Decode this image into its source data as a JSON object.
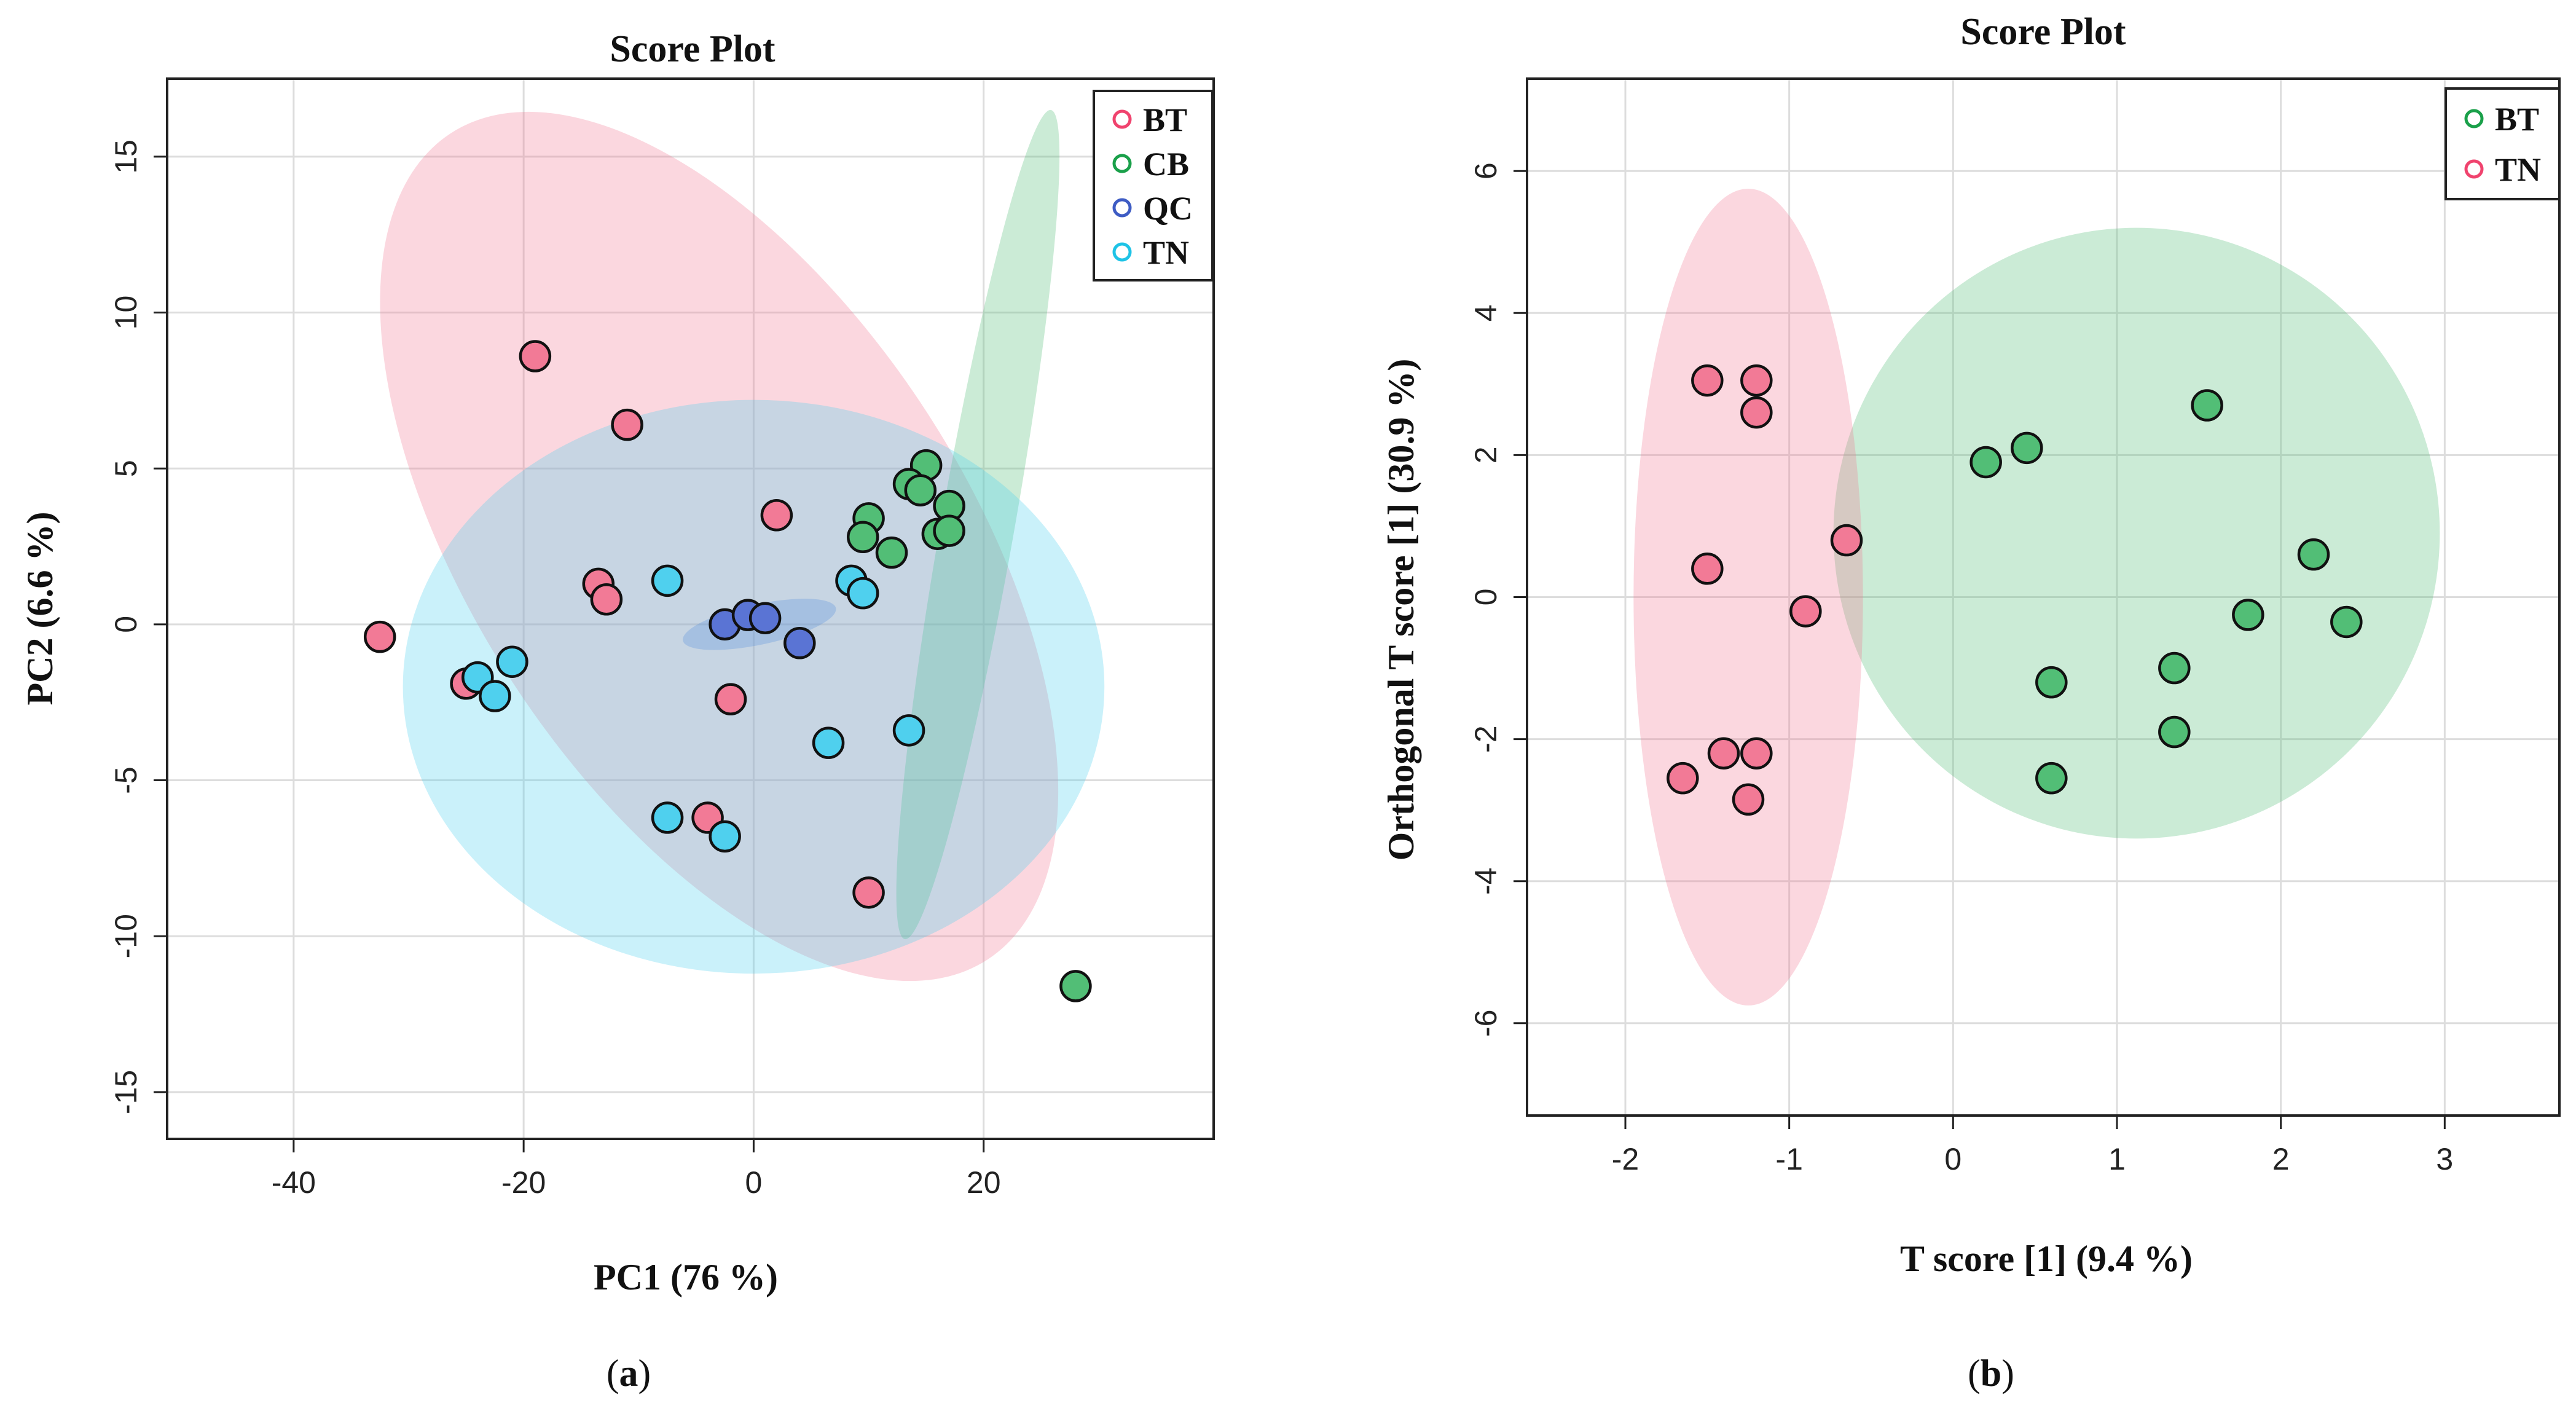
{
  "chart_data": [
    {
      "panel": "(a)",
      "panel_prefix": "(",
      "panel_letter": "a",
      "panel_suffix": ")",
      "type": "scatter",
      "title": "Score Plot",
      "xlabel": "PC1 (76 %)",
      "ylabel": "PC2 (6.6 %)",
      "xlim": [
        -51,
        40
      ],
      "ylim": [
        -16.5,
        17.5
      ],
      "xticks": [
        -40,
        -20,
        0,
        20
      ],
      "yticks": [
        -15,
        -10,
        -5,
        0,
        5,
        10,
        15
      ],
      "grid": true,
      "legend_position": "top-right",
      "series": [
        {
          "name": "BT",
          "color": "#f0436e",
          "fill": "#f27a96",
          "ellipse": {
            "cx": -3,
            "cy": 2.5,
            "rx": 21.5,
            "ry": 15.8,
            "angle": -33
          },
          "points": [
            [
              -19,
              8.6
            ],
            [
              -11,
              6.4
            ],
            [
              2,
              3.5
            ],
            [
              -13.5,
              1.3
            ],
            [
              -12.8,
              0.8
            ],
            [
              -32.5,
              -0.4
            ],
            [
              -25,
              -1.9
            ],
            [
              -2,
              -2.4
            ],
            [
              -4,
              -6.2
            ],
            [
              10,
              -8.6
            ]
          ]
        },
        {
          "name": "CB",
          "color": "#1aa04a",
          "fill": "#52be76",
          "ellipse": {
            "cx": 19.5,
            "cy": 3.2,
            "rx": 3.2,
            "ry": 13.5,
            "angle": 10
          },
          "points": [
            [
              15,
              5.1
            ],
            [
              13.5,
              4.5
            ],
            [
              14.5,
              4.3
            ],
            [
              17,
              3.8
            ],
            [
              10,
              3.4
            ],
            [
              9.5,
              2.8
            ],
            [
              16,
              2.9
            ],
            [
              17,
              3.0
            ],
            [
              12,
              2.3
            ],
            [
              28,
              -11.6
            ]
          ]
        },
        {
          "name": "QC",
          "color": "#3e5cc4",
          "fill": "#5a74d4",
          "ellipse": {
            "cx": 0.5,
            "cy": 0,
            "rx": 6.8,
            "ry": 0.65,
            "angle": -12
          },
          "points": [
            [
              -2.5,
              0
            ],
            [
              -0.5,
              0.3
            ],
            [
              1,
              0.2
            ],
            [
              4,
              -0.6
            ]
          ]
        },
        {
          "name": "TN",
          "color": "#1ec3e6",
          "fill": "#4fd0ee",
          "ellipse": {
            "cx": 0,
            "cy": -2,
            "rx": 30.5,
            "ry": 9.2,
            "angle": 0
          },
          "points": [
            [
              -7.5,
              1.4
            ],
            [
              8.5,
              1.4
            ],
            [
              9.5,
              1.0
            ],
            [
              -21,
              -1.2
            ],
            [
              -24,
              -1.7
            ],
            [
              -22.5,
              -2.3
            ],
            [
              6.5,
              -3.8
            ],
            [
              13.5,
              -3.4
            ],
            [
              -7.5,
              -6.2
            ],
            [
              -2.5,
              -6.8
            ]
          ]
        }
      ]
    },
    {
      "panel": "(b)",
      "panel_prefix": "(",
      "panel_letter": "b",
      "panel_suffix": ")",
      "type": "scatter",
      "title": "Score Plot",
      "xlabel": "T score [1] (9.4 %)",
      "ylabel": "Orthogonal T score [1] (30.9 %)",
      "xlim": [
        -2.6,
        3.7
      ],
      "ylim": [
        -7.3,
        7.3
      ],
      "xticks": [
        -2,
        -1,
        0,
        1,
        2,
        3
      ],
      "yticks": [
        -6,
        -4,
        -2,
        0,
        2,
        4,
        6
      ],
      "grid": true,
      "legend_position": "top-right",
      "series": [
        {
          "name": "BT",
          "color": "#1aa04a",
          "fill": "#52be76",
          "ellipse": {
            "cx": 1.12,
            "cy": 0.9,
            "rx": 1.85,
            "ry": 4.3,
            "angle": 0
          },
          "points": [
            [
              0.2,
              1.9
            ],
            [
              0.45,
              2.1
            ],
            [
              1.55,
              2.7
            ],
            [
              2.2,
              0.6
            ],
            [
              1.8,
              -0.25
            ],
            [
              2.4,
              -0.35
            ],
            [
              0.6,
              -1.2
            ],
            [
              1.35,
              -1.0
            ],
            [
              1.35,
              -1.9
            ],
            [
              0.6,
              -2.55
            ]
          ]
        },
        {
          "name": "TN",
          "color": "#f0436e",
          "fill": "#f27a96",
          "ellipse": {
            "cx": -1.25,
            "cy": 0,
            "rx": 0.7,
            "ry": 5.75,
            "angle": 0
          },
          "points": [
            [
              -1.5,
              3.05
            ],
            [
              -1.2,
              3.05
            ],
            [
              -1.2,
              2.6
            ],
            [
              -0.65,
              0.8
            ],
            [
              -1.5,
              0.4
            ],
            [
              -0.9,
              -0.2
            ],
            [
              -1.65,
              -2.55
            ],
            [
              -1.4,
              -2.2
            ],
            [
              -1.2,
              -2.2
            ],
            [
              -1.25,
              -2.85
            ]
          ]
        }
      ]
    }
  ]
}
